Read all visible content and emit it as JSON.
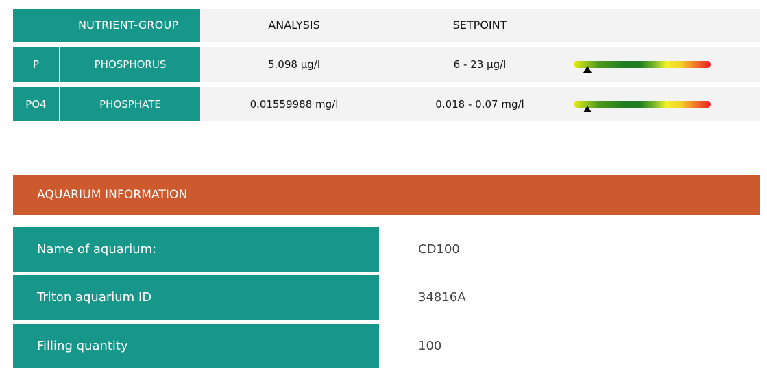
{
  "nutrient_table": {
    "headers": {
      "group": "NUTRIENT-GROUP",
      "analysis": "ANALYSIS",
      "setpoint": "SETPOINT"
    },
    "rows": [
      {
        "symbol": "P",
        "name": "PHOSPHORUS",
        "analysis": "5.098 µg/l",
        "setpoint": "6 - 23 µg/l",
        "gauge_level": 0.1
      },
      {
        "symbol": "PO4",
        "name": "PHOSPHATE",
        "analysis": "0.01559988 mg/l",
        "setpoint": "0.018 - 0.07 mg/l",
        "gauge_level": 0.1
      }
    ],
    "colors": {
      "teal": "#17978a",
      "row_bg": "#f3f3f3"
    }
  },
  "aquarium_info": {
    "title": "AQUARIUM INFORMATION",
    "header_color": "#cc5a2e",
    "fields": [
      {
        "label": "Name of aquarium:",
        "value": "CD100"
      },
      {
        "label": "Triton aquarium ID",
        "value": "34816A"
      },
      {
        "label": "Filling quantity",
        "value": "100"
      }
    ]
  }
}
